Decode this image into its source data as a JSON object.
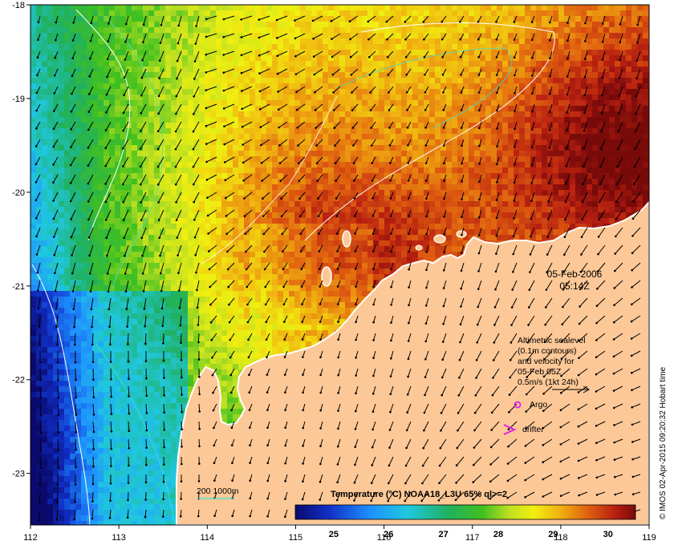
{
  "map": {
    "x_ticks": [
      "112",
      "113",
      "114",
      "115",
      "116",
      "117",
      "118",
      "119"
    ],
    "y_ticks": [
      "-18",
      "-19",
      "-20",
      "-21",
      "-22",
      "-23"
    ],
    "lon_range": [
      112,
      119
    ],
    "lat_range": [
      -18,
      -23.55
    ],
    "land_color": "#fdc897",
    "coast_color": "#ffffff"
  },
  "timestamp": {
    "date": "05-Feb-2006",
    "time": "05:14Z"
  },
  "info": {
    "line1": "Altimetric sealevel",
    "line2": "(0.1m contours)",
    "line3": "and velocity for",
    "line4": "05-Feb 05Z",
    "line5": "0.5m/s (1kt 24h)"
  },
  "legend": {
    "argo_label": "Argo",
    "argo_color": "#e020e0",
    "drifter_label": "drifter",
    "drifter_color": "#e020e0",
    "isobath_label": "200  1000m",
    "isobath_color": "#40e0d0"
  },
  "colorbar": {
    "title": "Temperature (°C) NOAA18_L3U 65% ql>=2",
    "ticks": [
      "25",
      "26",
      "27",
      "28",
      "29",
      "30"
    ],
    "range": [
      24.3,
      30.5
    ]
  },
  "credit": "© IMOS 02-Apr-2015 09:20:32 Hobart time"
}
